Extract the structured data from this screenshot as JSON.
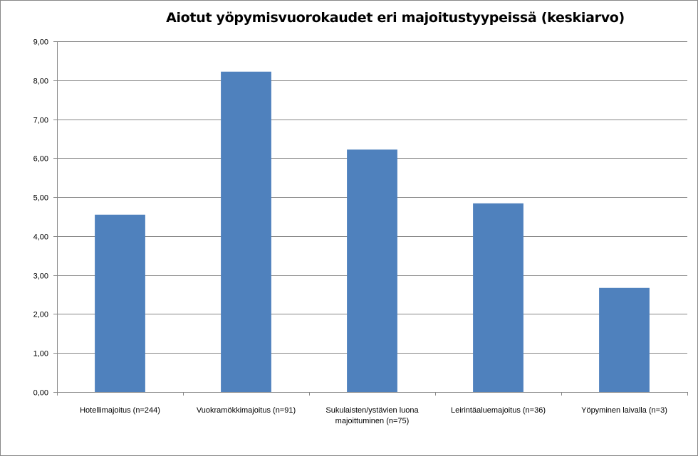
{
  "chart_data": {
    "type": "bar",
    "title": "Aiotut yöpymisvuorokaudet eri majoitustyypeissä (keskiarvo)",
    "xlabel": "",
    "ylabel": "",
    "categories": [
      [
        "Hotellimajoitus (n=244)"
      ],
      [
        "Vuokramökkimajoitus (n=91)"
      ],
      [
        "Sukulaisten/ystävien luona",
        "majoittuminen (n=75)"
      ],
      [
        "Leirintäaluemajoitus (n=36)"
      ],
      [
        "Yöpyminen laivalla (n=3)"
      ]
    ],
    "values": [
      4.55,
      8.22,
      6.22,
      4.84,
      2.67
    ],
    "ylim": [
      0,
      9
    ],
    "yticks": [
      "0,00",
      "1,00",
      "2,00",
      "3,00",
      "4,00",
      "5,00",
      "6,00",
      "7,00",
      "8,00",
      "9,00"
    ],
    "grid": true,
    "legend": "none",
    "colors": {
      "bar": "#4F81BD",
      "grid": "#868686",
      "axis": "#868686"
    }
  }
}
